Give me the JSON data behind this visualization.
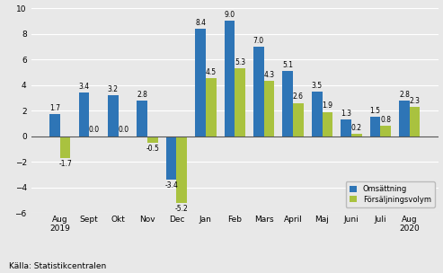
{
  "categories": [
    "Aug\n2019",
    "Sept",
    "Okt",
    "Nov",
    "Dec",
    "Jan",
    "Feb",
    "Mars",
    "April",
    "Maj",
    "Juni",
    "Juli",
    "Aug\n2020"
  ],
  "omsattning": [
    1.7,
    3.4,
    3.2,
    2.8,
    -3.4,
    8.4,
    9.0,
    7.0,
    5.1,
    3.5,
    1.3,
    1.5,
    2.8
  ],
  "forsaljningsvolym": [
    -1.7,
    0.0,
    0.0,
    -0.5,
    -5.2,
    4.5,
    5.3,
    4.3,
    2.6,
    1.9,
    0.2,
    0.8,
    2.3
  ],
  "bar_color_blue": "#2e75b6",
  "bar_color_green": "#a9c23f",
  "legend_labels": [
    "Omsättning",
    "Försäljningsvolym"
  ],
  "ylim": [
    -6,
    10
  ],
  "yticks": [
    -6,
    -4,
    -2,
    0,
    2,
    4,
    6,
    8,
    10
  ],
  "source": "Källa: Statistikcentralen",
  "background_color": "#e8e8e8",
  "plot_bg": "#e8e8e8",
  "label_fontsize": 5.5,
  "tick_fontsize": 6.5
}
